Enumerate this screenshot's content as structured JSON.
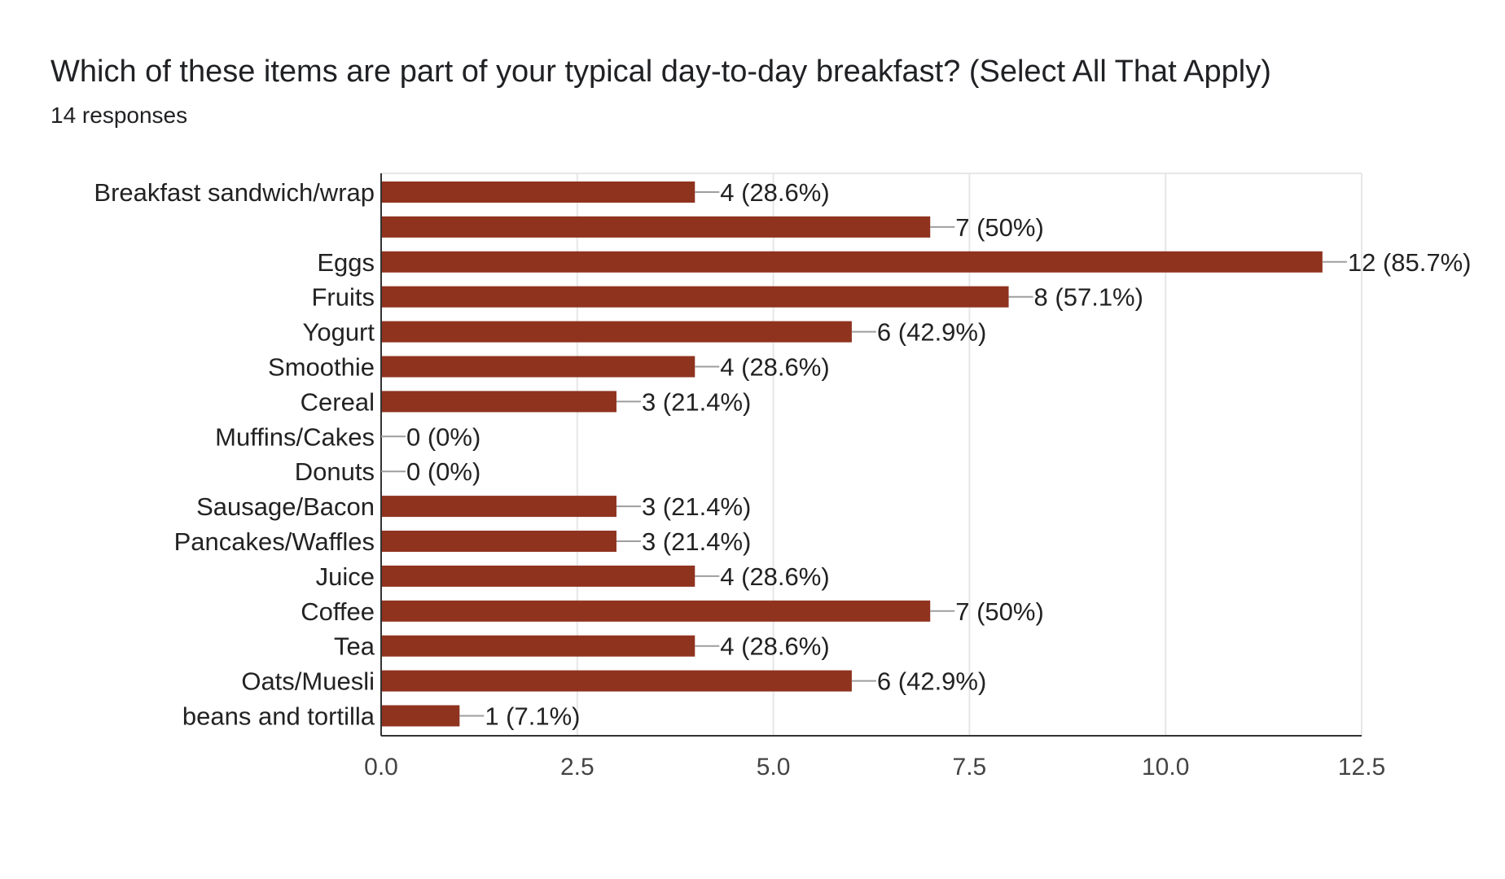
{
  "header": {
    "title": "Which of these items are part of your typical day-to-day breakfast?  (Select All That Apply)",
    "responses": "14 responses"
  },
  "colors": {
    "bar": "#8f331f",
    "grid": "#e6e6e6",
    "axis": "#333333",
    "leader": "#9e9e9e"
  },
  "chart_data": {
    "type": "bar",
    "orientation": "horizontal",
    "categories": [
      "Breakfast sandwich/wrap",
      "",
      "Eggs",
      "Fruits",
      "Yogurt",
      "Smoothie",
      "Cereal",
      "Muffins/Cakes",
      "Donuts",
      "Sausage/Bacon",
      "Pancakes/Waffles",
      "Juice",
      "Coffee",
      "Tea",
      "Oats/Muesli",
      "beans and tortilla"
    ],
    "values": [
      4,
      7,
      12,
      8,
      6,
      4,
      3,
      0,
      0,
      3,
      3,
      4,
      7,
      4,
      6,
      1
    ],
    "data_labels": [
      "4 (28.6%)",
      "7 (50%)",
      "12 (85.7%)",
      "8 (57.1%)",
      "6 (42.9%)",
      "4 (28.6%)",
      "3 (21.4%)",
      "0 (0%)",
      "0 (0%)",
      "3 (21.4%)",
      "3 (21.4%)",
      "4 (28.6%)",
      "7 (50%)",
      "4 (28.6%)",
      "6 (42.9%)",
      "1 (7.1%)"
    ],
    "xlim": [
      0,
      12.5
    ],
    "xticks": [
      0,
      2.5,
      5,
      7.5,
      10,
      12.5
    ],
    "xtick_labels": [
      "0.0",
      "2.5",
      "5.0",
      "7.5",
      "10.0",
      "12.5"
    ],
    "grid": true,
    "legend": "none"
  }
}
